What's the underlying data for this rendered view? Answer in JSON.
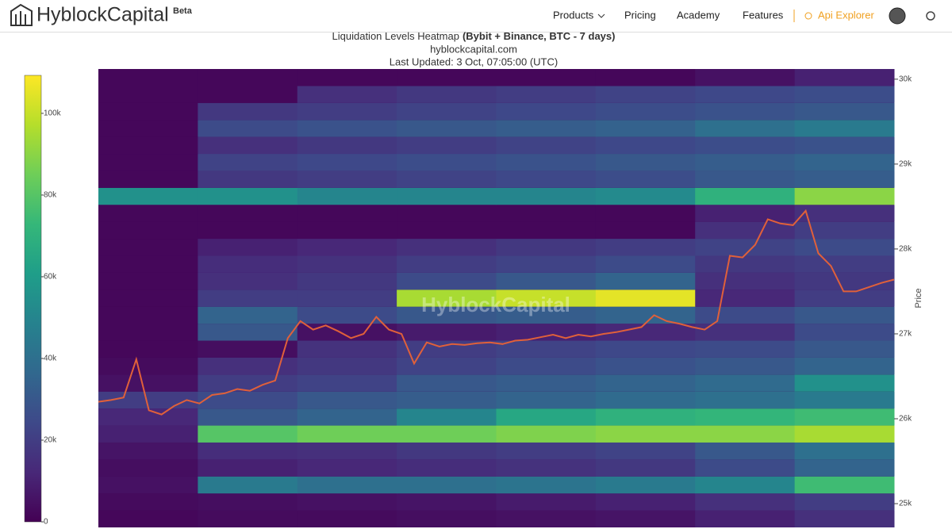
{
  "header": {
    "logo": "HyblockCapital",
    "badge": "Beta",
    "nav": [
      "Products",
      "Pricing",
      "Academy",
      "Features"
    ],
    "api": "Api Explorer"
  },
  "chart_data": {
    "type": "heatmap",
    "title": "Liquidation Levels Heatmap",
    "title_bold": "(Bybit + Binance, BTC - 7 days)",
    "subtitle": "hyblockcapital.com",
    "updated": "Last Updated: 3 Oct, 07:05:00 (UTC)",
    "watermark": "HyblockCapital",
    "y_label": "Price",
    "ylim": [
      24720,
      30120
    ],
    "yticks": [
      {
        "value": 25000,
        "label": "25k"
      },
      {
        "value": 26000,
        "label": "26k"
      },
      {
        "value": 27000,
        "label": "27k"
      },
      {
        "value": 28000,
        "label": "28k"
      },
      {
        "value": 29000,
        "label": "29k"
      },
      {
        "value": 30000,
        "label": "30k"
      }
    ],
    "colorscale": [
      "#440154",
      "#482878",
      "#3e4989",
      "#31688e",
      "#26828e",
      "#1f9e89",
      "#35b779",
      "#6ece58",
      "#b5de2b",
      "#fde725"
    ],
    "clim": [
      0,
      109300
    ],
    "cticks": [
      0,
      {
        "value": 20000,
        "label": "20k"
      },
      {
        "value": 40000,
        "label": "40k"
      },
      {
        "value": 60000,
        "label": "60k"
      },
      {
        "value": 80000,
        "label": "80k"
      },
      {
        "value": 100000,
        "label": "100k"
      }
    ],
    "categories": [
      null,
      null,
      null,
      null,
      null,
      null,
      null,
      null
    ],
    "y": [
      24820,
      25020,
      25220,
      25420,
      25620,
      25820,
      26020,
      26220,
      26420,
      26620,
      26820,
      27020,
      27220,
      27420,
      27620,
      27820,
      28020,
      28220,
      28420,
      28620,
      28820,
      29020,
      29220,
      29420,
      29620,
      29820,
      30020
    ],
    "z": [
      [
        2000,
        3000,
        3000,
        4000,
        5000,
        6000,
        10000,
        15000
      ],
      [
        3000,
        4000,
        5000,
        6000,
        8000,
        10000,
        15000,
        20000
      ],
      [
        5000,
        45000,
        40000,
        40000,
        42000,
        45000,
        50000,
        75000
      ],
      [
        4000,
        10000,
        12000,
        14000,
        16000,
        18000,
        25000,
        35000
      ],
      [
        6000,
        14000,
        15000,
        18000,
        20000,
        22000,
        30000,
        40000
      ],
      [
        10000,
        80000,
        85000,
        85000,
        88000,
        90000,
        90000,
        95000
      ],
      [
        12000,
        30000,
        35000,
        50000,
        65000,
        70000,
        72000,
        75000
      ],
      [
        20000,
        25000,
        30000,
        32000,
        35000,
        38000,
        40000,
        45000
      ],
      [
        5000,
        20000,
        22000,
        30000,
        32000,
        35000,
        38000,
        55000
      ],
      [
        3000,
        15000,
        18000,
        22000,
        25000,
        28000,
        30000,
        35000
      ],
      [
        2000,
        4000,
        16000,
        20000,
        22000,
        24000,
        25000,
        30000
      ],
      [
        2000,
        30000,
        5000,
        8000,
        10000,
        12000,
        15000,
        25000
      ],
      [
        2000,
        35000,
        25000,
        30000,
        32000,
        35000,
        25000,
        30000
      ],
      [
        2000,
        20000,
        20000,
        95000,
        100000,
        105000,
        12000,
        20000
      ],
      [
        2000,
        15000,
        18000,
        25000,
        30000,
        35000,
        15000,
        18000
      ],
      [
        2000,
        14000,
        16000,
        20000,
        22000,
        25000,
        18000,
        20000
      ],
      [
        2000,
        10000,
        12000,
        15000,
        18000,
        20000,
        22000,
        25000
      ],
      [
        2000,
        2000,
        2000,
        2000,
        2000,
        2000,
        15000,
        20000
      ],
      [
        2000,
        2000,
        2000,
        2000,
        2000,
        2000,
        10000,
        15000
      ],
      [
        55000,
        55000,
        50000,
        50000,
        50000,
        52000,
        70000,
        90000
      ],
      [
        2000,
        18000,
        20000,
        22000,
        24000,
        26000,
        30000,
        32000
      ],
      [
        2000,
        22000,
        24000,
        26000,
        28000,
        30000,
        32000,
        35000
      ],
      [
        2000,
        15000,
        18000,
        20000,
        22000,
        24000,
        26000,
        28000
      ],
      [
        2000,
        25000,
        28000,
        30000,
        32000,
        34000,
        40000,
        45000
      ],
      [
        2000,
        18000,
        20000,
        22000,
        24000,
        26000,
        28000,
        30000
      ],
      [
        2000,
        2000,
        15000,
        18000,
        20000,
        22000,
        24000,
        26000
      ],
      [
        2000,
        2000,
        2000,
        2000,
        2000,
        2000,
        5000,
        10000
      ]
    ],
    "line": {
      "color": "#e0603a",
      "values": [
        26200,
        26220,
        26250,
        26700,
        26100,
        26050,
        26150,
        26220,
        26180,
        26280,
        26300,
        26350,
        26330,
        26400,
        26450,
        26950,
        27150,
        27050,
        27100,
        27030,
        26950,
        27000,
        27200,
        27050,
        27000,
        26650,
        26900,
        26850,
        26880,
        26870,
        26890,
        26900,
        26880,
        26920,
        26930,
        26960,
        26990,
        26950,
        26990,
        26970,
        27000,
        27020,
        27050,
        27080,
        27220,
        27150,
        27120,
        27080,
        27050,
        27150,
        27920,
        27900,
        28050,
        28350,
        28300,
        28280,
        28450,
        27950,
        27800,
        27500,
        27500,
        27550,
        27600,
        27640
      ]
    }
  }
}
